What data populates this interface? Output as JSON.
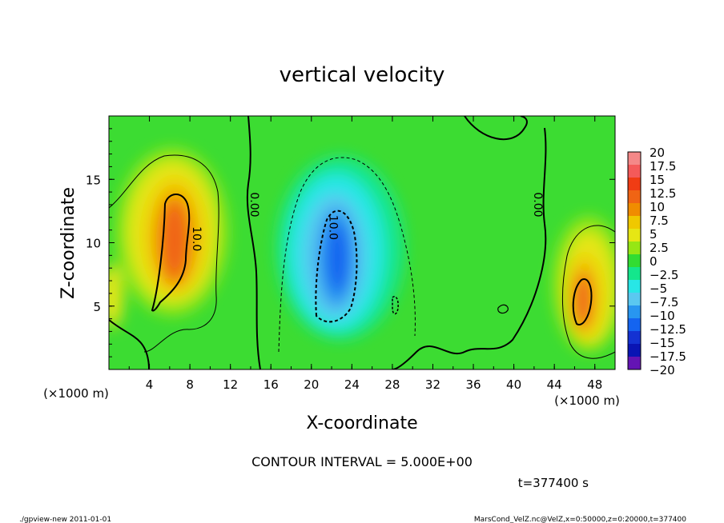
{
  "chart_data": {
    "type": "heatmap",
    "title": "vertical velocity",
    "xlabel": "X-coordinate",
    "ylabel": "Z-coordinate",
    "x_unit": "(×1000 m)",
    "z_unit": "(×1000 m)",
    "xlim": [
      0,
      50
    ],
    "ylim": [
      0,
      20
    ],
    "x_ticks": [
      4,
      8,
      12,
      16,
      20,
      24,
      28,
      32,
      36,
      40,
      44,
      48
    ],
    "y_ticks": [
      5,
      10,
      15
    ],
    "contour_interval_text": "CONTOUR INTERVAL = 5.000E+00",
    "time_text": "t=377400 s",
    "contour_labels": [
      {
        "text": "0.00",
        "x": 14.0,
        "z": 13.0
      },
      {
        "text": "10.0",
        "x": 8.3,
        "z": 10.3
      },
      {
        "text": "10.0",
        "x": 21.8,
        "z": 11.2
      },
      {
        "text": "0.00",
        "x": 42.0,
        "z": 13.0
      }
    ],
    "colorbar": {
      "levels": [
        20,
        17.5,
        15,
        12.5,
        10,
        7.5,
        5,
        2.5,
        0,
        -2.5,
        -5,
        -7.5,
        -10,
        -12.5,
        -15,
        -17.5,
        -20
      ],
      "labels": [
        "20",
        "17.5",
        "15",
        "12.5",
        "10",
        "7.5",
        "5",
        "2.5",
        "0",
        "−2.5",
        "−5",
        "−7.5",
        "−10",
        "−12.5",
        "−15",
        "−17.5",
        "−20"
      ],
      "colors": [
        "#f48888",
        "#f45a5a",
        "#f03c14",
        "#f06414",
        "#f08c00",
        "#f0c800",
        "#e6e614",
        "#96e614",
        "#32dc32",
        "#14e68c",
        "#28e6e6",
        "#5ac8f0",
        "#2896f0",
        "#1464f0",
        "#1432d2",
        "#0a14b4",
        "#6414b4"
      ]
    },
    "features": [
      {
        "name": "updraft-left",
        "x": 6.5,
        "z": 9.5,
        "peak": 14
      },
      {
        "name": "downdraft-center",
        "x": 22.5,
        "z": 8.5,
        "peak": -12.5
      },
      {
        "name": "updraft-right",
        "x": 46.5,
        "z": 5.5,
        "peak": 13
      }
    ]
  },
  "footer": {
    "left": "./gpview-new   2011-01-01",
    "right": "MarsCond_VelZ.nc@VelZ,x=0:50000,z=0:20000,t=377400"
  }
}
